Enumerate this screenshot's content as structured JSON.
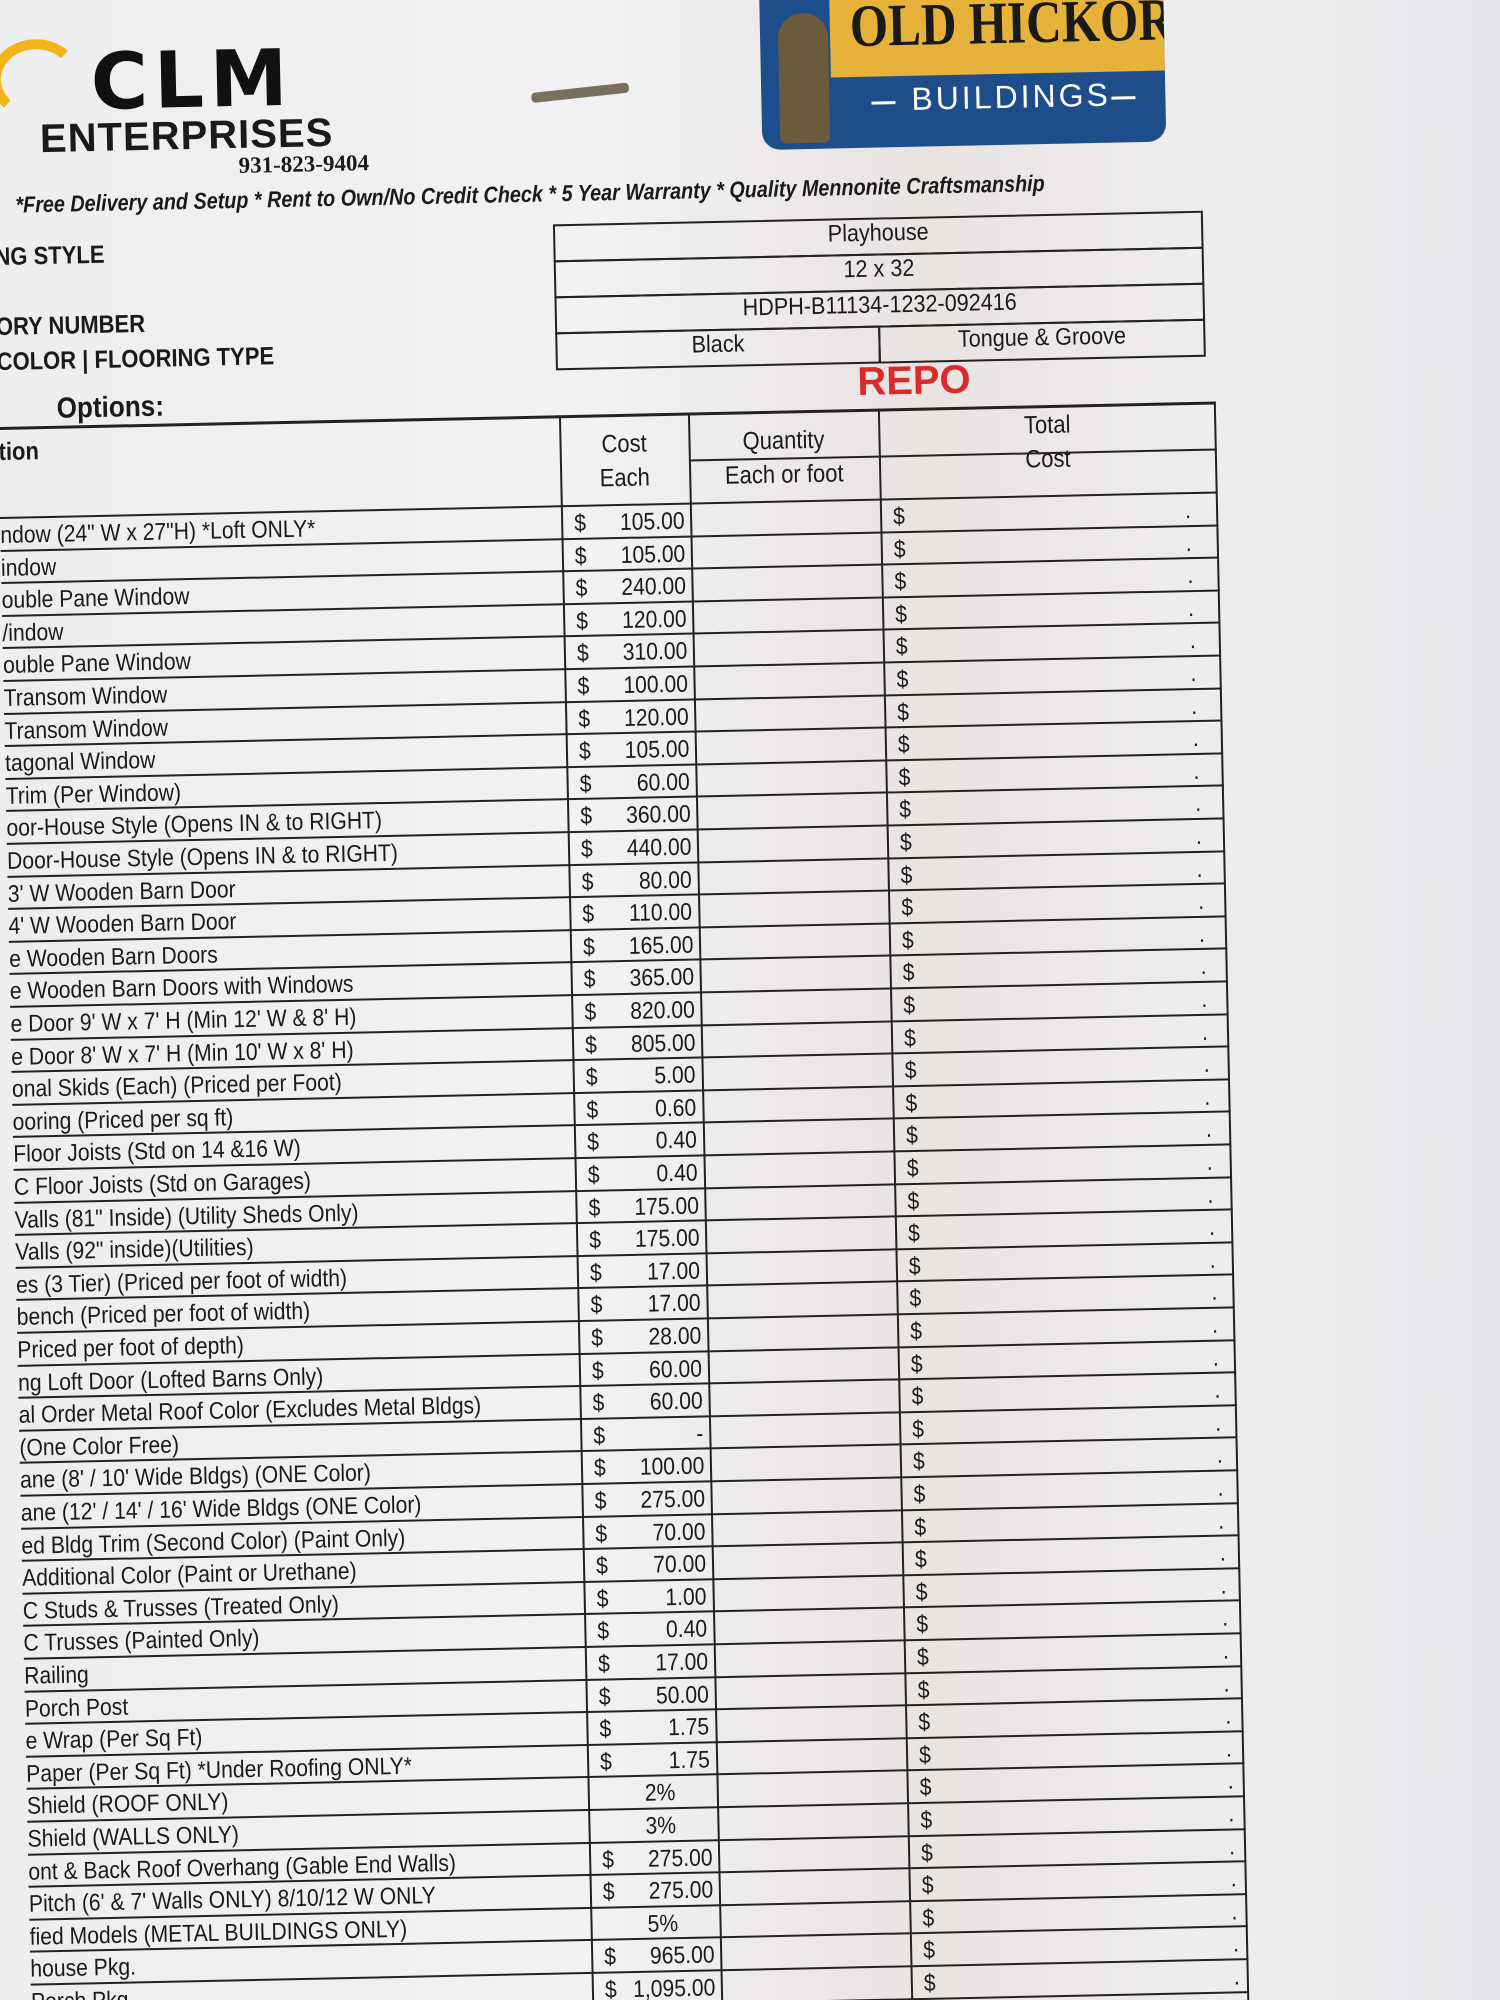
{
  "header": {
    "company": "CLM",
    "company_sub": "ENTERPRISES",
    "phone": "931-823-9404",
    "brand": "OLD HICKORY",
    "brand_sub": "BUILDINGS",
    "tagline": "*Free Delivery and Setup  * Rent to Own/No Credit Check * 5 Year Warranty * Quality Mennonite Craftsmanship"
  },
  "info": {
    "labels": [
      "NG STYLE",
      "ORY NUMBER",
      "COLOR | FLOORING TYPE"
    ],
    "style": "Playhouse",
    "size": "12 x 32",
    "serial": "HDPH-B11134-1232-092416",
    "color": "Black",
    "flooring": "Tongue & Groove"
  },
  "options_label": "Options:",
  "stamp": "REPO",
  "table": {
    "headers": {
      "option": "tion",
      "cost": [
        "Cost",
        "Each"
      ],
      "quantity": [
        "Quantity",
        "Each or foot"
      ],
      "total": [
        "Total",
        "Cost"
      ]
    },
    "total_symbol": "$",
    "total_blank": ".",
    "rows": [
      {
        "option": "ndow (24\" W x 27\"H) *Loft ONLY*",
        "currency": "$",
        "cost": "105.00"
      },
      {
        "option": "indow",
        "currency": "$",
        "cost": "105.00"
      },
      {
        "option": "ouble Pane Window",
        "currency": "$",
        "cost": "240.00"
      },
      {
        "option": "/indow",
        "currency": "$",
        "cost": "120.00"
      },
      {
        "option": "ouble Pane Window",
        "currency": "$",
        "cost": "310.00"
      },
      {
        "option": "Transom Window",
        "currency": "$",
        "cost": "100.00"
      },
      {
        "option": "Transom Window",
        "currency": "$",
        "cost": "120.00"
      },
      {
        "option": "tagonal Window",
        "currency": "$",
        "cost": "105.00"
      },
      {
        "option": "Trim (Per Window)",
        "currency": "$",
        "cost": "60.00"
      },
      {
        "option": "oor-House Style (Opens IN & to RIGHT)",
        "currency": "$",
        "cost": "360.00"
      },
      {
        "option": "Door-House Style (Opens IN & to RIGHT)",
        "currency": "$",
        "cost": "440.00"
      },
      {
        "option": "3' W Wooden Barn Door",
        "currency": "$",
        "cost": "80.00"
      },
      {
        "option": "4' W Wooden Barn Door",
        "currency": "$",
        "cost": "110.00"
      },
      {
        "option": "e Wooden Barn Doors",
        "currency": "$",
        "cost": "165.00"
      },
      {
        "option": "e Wooden Barn Doors with Windows",
        "currency": "$",
        "cost": "365.00"
      },
      {
        "option": "e Door 9' W x 7' H (Min 12' W & 8' H)",
        "currency": "$",
        "cost": "820.00"
      },
      {
        "option": "e Door 8' W x 7' H (Min 10' W x 8' H)",
        "currency": "$",
        "cost": "805.00"
      },
      {
        "option": "onal Skids (Each) (Priced per Foot)",
        "currency": "$",
        "cost": "5.00"
      },
      {
        "option": "ooring (Priced per sq ft)",
        "currency": "$",
        "cost": "0.60"
      },
      {
        "option": "Floor Joists (Std on 14 &16 W)",
        "currency": "$",
        "cost": "0.40"
      },
      {
        "option": "C Floor Joists (Std on Garages)",
        "currency": "$",
        "cost": "0.40"
      },
      {
        "option": "Valls (81\" Inside) (Utility Sheds Only)",
        "currency": "$",
        "cost": "175.00"
      },
      {
        "option": "Valls  (92\" inside)(Utilities)",
        "currency": "$",
        "cost": "175.00"
      },
      {
        "option": "es (3 Tier) (Priced per foot of width)",
        "currency": "$",
        "cost": "17.00"
      },
      {
        "option": "bench (Priced per foot of width)",
        "currency": "$",
        "cost": "17.00"
      },
      {
        "option": "Priced per foot of depth)",
        "currency": "$",
        "cost": "28.00"
      },
      {
        "option": "ng Loft Door (Lofted Barns Only)",
        "currency": "$",
        "cost": "60.00"
      },
      {
        "option": "al Order Metal Roof Color (Excludes Metal Bldgs)",
        "currency": "$",
        "cost": "60.00"
      },
      {
        "option": "(One Color Free)",
        "currency": "$",
        "cost": "-"
      },
      {
        "option": "ane (8' / 10' Wide Bldgs) (ONE Color)",
        "currency": "$",
        "cost": "100.00"
      },
      {
        "option": "ane (12' / 14' / 16' Wide Bldgs (ONE Color)",
        "currency": "$",
        "cost": "275.00"
      },
      {
        "option": "ed Bldg Trim (Second Color) (Paint Only)",
        "currency": "$",
        "cost": "70.00"
      },
      {
        "option": "Additional Color (Paint or Urethane)",
        "currency": "$",
        "cost": "70.00"
      },
      {
        "option": "C Studs & Trusses (Treated Only)",
        "currency": "$",
        "cost": "1.00"
      },
      {
        "option": "C Trusses (Painted Only)",
        "currency": "$",
        "cost": "0.40"
      },
      {
        "option": "Railing",
        "currency": "$",
        "cost": "17.00"
      },
      {
        "option": "Porch Post",
        "currency": "$",
        "cost": "50.00"
      },
      {
        "option": "e Wrap (Per Sq Ft)",
        "currency": "$",
        "cost": "1.75"
      },
      {
        "option": "Paper (Per Sq Ft) *Under Roofing ONLY*",
        "currency": "$",
        "cost": "1.75"
      },
      {
        "option": "Shield (ROOF ONLY)",
        "cost": "2%"
      },
      {
        "option": "Shield (WALLS ONLY)",
        "cost": "3%"
      },
      {
        "option": "ont & Back Roof Overhang (Gable End Walls)",
        "currency": "$",
        "cost": "275.00"
      },
      {
        "option": "Pitch (6' & 7' Walls ONLY) 8/10/12 W ONLY",
        "currency": "$",
        "cost": "275.00"
      },
      {
        "option": "fied Models (METAL BUILDINGS ONLY)",
        "cost": "5%"
      },
      {
        "option": "house Pkg.",
        "currency": "$",
        "cost": "965.00"
      },
      {
        "option": "Porch Pkg.",
        "currency": "$",
        "cost": "1,095.00"
      }
    ]
  }
}
